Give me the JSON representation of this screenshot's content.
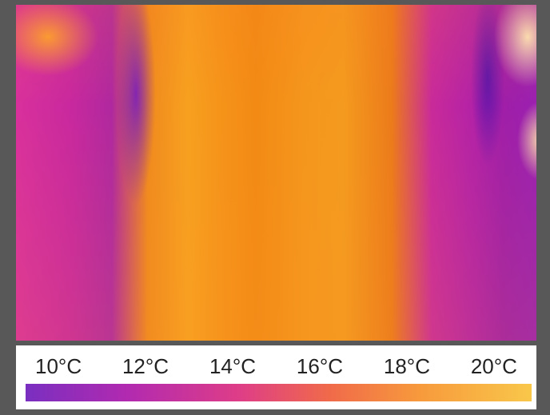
{
  "legend": {
    "ticks": [
      "10°C",
      "12°C",
      "14°C",
      "16°C",
      "18°C",
      "20°C"
    ]
  },
  "colors": {
    "scale_low": "#7a2fc0",
    "scale_mid": "#de3d88",
    "scale_high": "#f9c74a",
    "frame": "#585858"
  }
}
